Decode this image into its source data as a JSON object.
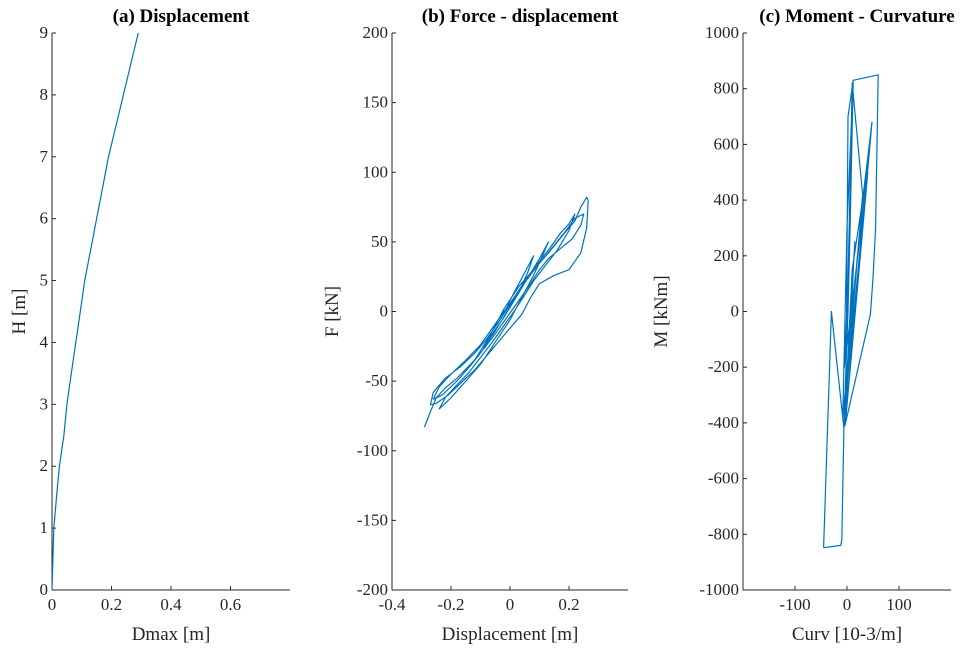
{
  "chart_data": [
    {
      "type": "line",
      "title": "(a) Displacement",
      "xlabel": "Dmax [m]",
      "ylabel": "H [m]",
      "xlim": [
        0,
        0.8
      ],
      "ylim": [
        0,
        9
      ],
      "xticks": [
        0,
        0.2,
        0.4,
        0.6
      ],
      "yticks": [
        0,
        1,
        2,
        3,
        4,
        5,
        6,
        7,
        8,
        9
      ],
      "xtick_labels": [
        "0",
        "0.2",
        "0.4",
        "0.6"
      ],
      "ytick_labels": [
        "0",
        "1",
        "2",
        "3",
        "4",
        "5",
        "6",
        "7",
        "8",
        "9"
      ],
      "series": [
        {
          "color": "#0072BD",
          "points": [
            [
              0,
              0
            ],
            [
              0.003,
              0.5
            ],
            [
              0.006,
              1
            ],
            [
              0.015,
              1.5
            ],
            [
              0.025,
              2
            ],
            [
              0.04,
              2.5
            ],
            [
              0.05,
              3
            ],
            [
              0.065,
              3.5
            ],
            [
              0.08,
              4
            ],
            [
              0.095,
              4.5
            ],
            [
              0.11,
              5
            ],
            [
              0.13,
              5.5
            ],
            [
              0.15,
              6
            ],
            [
              0.17,
              6.5
            ],
            [
              0.19,
              7
            ],
            [
              0.215,
              7.5
            ],
            [
              0.24,
              8
            ],
            [
              0.265,
              8.5
            ],
            [
              0.29,
              9
            ]
          ]
        }
      ]
    },
    {
      "type": "line",
      "title": "(b) Force - displacement",
      "xlabel": "Displacement [m]",
      "ylabel": "F [kN]",
      "xlim": [
        -0.4,
        0.4
      ],
      "ylim": [
        -200,
        200
      ],
      "xticks": [
        -0.4,
        -0.2,
        0,
        0.2
      ],
      "yticks": [
        -200,
        -150,
        -100,
        -50,
        0,
        50,
        100,
        150,
        200
      ],
      "xtick_labels": [
        "-0.4",
        "-0.2",
        "0",
        "0.2"
      ],
      "ytick_labels": [
        "-200",
        "-150",
        "-100",
        "-50",
        "0",
        "50",
        "100",
        "150",
        "200"
      ],
      "series": [
        {
          "color": "#0072BD",
          "points": [
            [
              -0.29,
              -83
            ],
            [
              -0.27,
              -72
            ],
            [
              -0.25,
              -62
            ],
            [
              -0.22,
              -55
            ],
            [
              -0.18,
              -48
            ],
            [
              -0.12,
              -35
            ],
            [
              -0.07,
              -18
            ],
            [
              -0.02,
              2
            ],
            [
              0.03,
              18
            ],
            [
              0.08,
              30
            ],
            [
              0.13,
              42
            ],
            [
              0.18,
              55
            ],
            [
              0.22,
              65
            ],
            [
              0.24,
              75
            ],
            [
              0.26,
              82
            ],
            [
              0.265,
              80
            ],
            [
              0.26,
              60
            ],
            [
              0.24,
              42
            ],
            [
              0.2,
              30
            ],
            [
              0.15,
              26
            ],
            [
              0.1,
              20
            ],
            [
              0.07,
              10
            ],
            [
              0.04,
              -2
            ],
            [
              0,
              -12
            ],
            [
              -0.04,
              -22
            ],
            [
              -0.08,
              -32
            ],
            [
              -0.12,
              -42
            ],
            [
              -0.17,
              -52
            ],
            [
              -0.21,
              -60
            ],
            [
              -0.25,
              -66
            ],
            [
              -0.27,
              -67
            ],
            [
              -0.26,
              -58
            ],
            [
              -0.22,
              -48
            ],
            [
              -0.17,
              -40
            ],
            [
              -0.12,
              -30
            ],
            [
              -0.08,
              -20
            ],
            [
              -0.04,
              -8
            ],
            [
              0,
              5
            ],
            [
              0.04,
              18
            ],
            [
              0.09,
              32
            ],
            [
              0.14,
              45
            ],
            [
              0.19,
              58
            ],
            [
              0.22,
              67
            ],
            [
              0.25,
              70
            ],
            [
              0.24,
              62
            ],
            [
              0.21,
              52
            ],
            [
              0.17,
              45
            ],
            [
              0.13,
              38
            ],
            [
              0.1,
              30
            ],
            [
              0.07,
              20
            ],
            [
              0.03,
              8
            ],
            [
              -0.01,
              -4
            ],
            [
              -0.05,
              -16
            ],
            [
              -0.09,
              -27
            ],
            [
              -0.13,
              -38
            ],
            [
              -0.18,
              -50
            ],
            [
              -0.23,
              -60
            ],
            [
              -0.26,
              -63
            ],
            [
              -0.24,
              -54
            ],
            [
              -0.2,
              -45
            ],
            [
              -0.15,
              -35
            ],
            [
              -0.1,
              -24
            ],
            [
              -0.06,
              -12
            ],
            [
              -0.02,
              0
            ],
            [
              0.02,
              12
            ],
            [
              0.06,
              25
            ],
            [
              0.1,
              36
            ],
            [
              0.14,
              47
            ],
            [
              0.17,
              56
            ],
            [
              0.2,
              63
            ],
            [
              0.22,
              70
            ],
            [
              0.2,
              58
            ],
            [
              0.16,
              44
            ],
            [
              0.12,
              33
            ],
            [
              0.08,
              22
            ],
            [
              0.05,
              12
            ],
            [
              0.02,
              2
            ],
            [
              -0.02,
              -10
            ],
            [
              -0.06,
              -22
            ],
            [
              -0.1,
              -33
            ],
            [
              -0.14,
              -44
            ],
            [
              -0.19,
              -55
            ],
            [
              -0.22,
              -62
            ],
            [
              -0.24,
              -70
            ],
            [
              -0.2,
              -62
            ],
            [
              -0.15,
              -50
            ],
            [
              -0.1,
              -38
            ],
            [
              -0.05,
              -22
            ],
            [
              0,
              -6
            ],
            [
              0.04,
              10
            ],
            [
              0.08,
              26
            ],
            [
              0.11,
              40
            ],
            [
              0.13,
              50
            ],
            [
              0.1,
              38
            ],
            [
              0.06,
              24
            ],
            [
              0.02,
              10
            ],
            [
              -0.02,
              -4
            ],
            [
              -0.06,
              -16
            ],
            [
              -0.09,
              -26
            ],
            [
              -0.05,
              -14
            ],
            [
              -0.01,
              0
            ],
            [
              0.03,
              14
            ],
            [
              0.06,
              28
            ],
            [
              0.08,
              40
            ],
            [
              0.05,
              28
            ],
            [
              0.02,
              16
            ],
            [
              -0.01,
              4
            ]
          ]
        }
      ]
    },
    {
      "type": "line",
      "title": "(c) Moment - Curvature",
      "xlabel": "Curv [10-3/m]",
      "ylabel": "M [kNm]",
      "xlim": [
        -200,
        200
      ],
      "ylim": [
        -1000,
        1000
      ],
      "xticks": [
        -100,
        0,
        100
      ],
      "yticks": [
        -1000,
        -800,
        -600,
        -400,
        -200,
        0,
        200,
        400,
        600,
        800,
        1000
      ],
      "xtick_labels": [
        "-100",
        "0",
        "100"
      ],
      "ytick_labels": [
        "-1000",
        "-800",
        "-600",
        "-400",
        "-200",
        "0",
        "200",
        "400",
        "600",
        "800",
        "1000"
      ],
      "series": [
        {
          "color": "#0072BD",
          "points": [
            [
              -45,
              -848
            ],
            [
              -12,
              -840
            ],
            [
              -10,
              -820
            ],
            [
              -6,
              -420
            ],
            [
              -2,
              -200
            ],
            [
              2,
              0
            ],
            [
              6,
              300
            ],
            [
              12,
              830
            ],
            [
              60,
              850
            ],
            [
              55,
              300
            ],
            [
              50,
              120
            ],
            [
              45,
              -10
            ],
            [
              -4,
              -410
            ],
            [
              48,
              680
            ],
            [
              30,
              400
            ],
            [
              10,
              150
            ],
            [
              -2,
              -300
            ],
            [
              2,
              700
            ],
            [
              12,
              830
            ],
            [
              0,
              300
            ],
            [
              -8,
              -380
            ],
            [
              20,
              200
            ],
            [
              44,
              600
            ],
            [
              -4,
              -350
            ],
            [
              30,
              420
            ],
            [
              10,
              820
            ],
            [
              2,
              100
            ],
            [
              -5,
              -200
            ],
            [
              40,
              500
            ],
            [
              -3,
              -400
            ],
            [
              15,
              250
            ],
            [
              -6,
              -420
            ],
            [
              -30,
              0
            ],
            [
              -45,
              -848
            ]
          ]
        }
      ]
    }
  ]
}
